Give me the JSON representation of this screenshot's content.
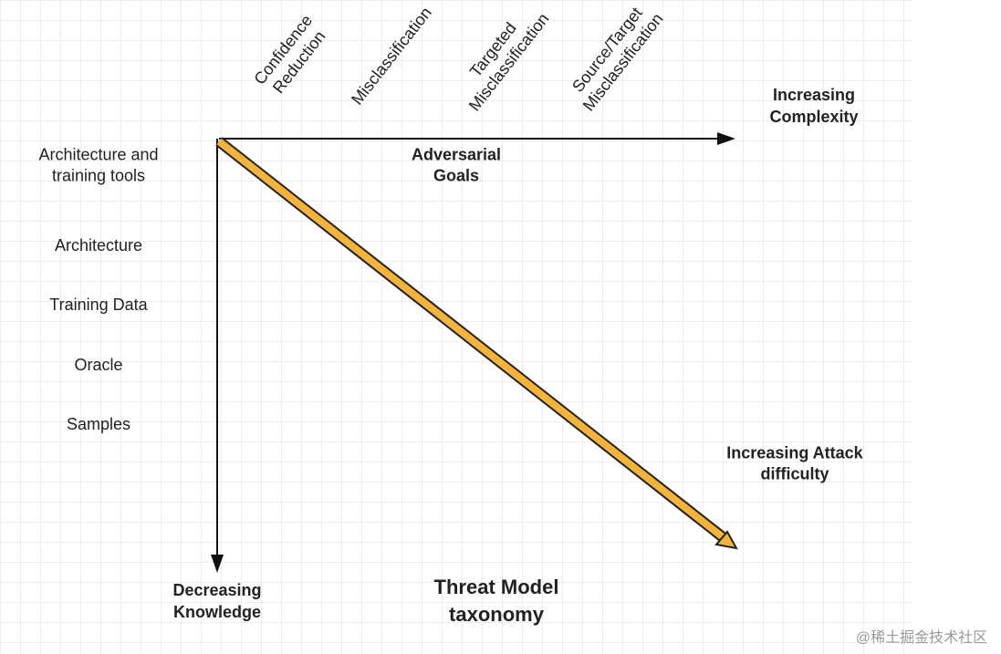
{
  "goals": [
    [
      "Confidence",
      "Reduction"
    ],
    [
      "Misclassification"
    ],
    [
      "Targeted",
      "Misclassification"
    ],
    [
      "Source/Target",
      "Misclassification"
    ]
  ],
  "x_axis": {
    "end_label": [
      "Increasing",
      "Complexity"
    ],
    "title": [
      "Adversarial",
      "Goals"
    ]
  },
  "knowledge": [
    [
      "Architecture and",
      "training tools"
    ],
    [
      "Architecture"
    ],
    [
      "Training Data"
    ],
    [
      "Oracle"
    ],
    [
      "Samples"
    ]
  ],
  "y_axis": {
    "end_label": [
      "Decreasing",
      "Knowledge"
    ]
  },
  "diagonal_label": [
    "Increasing Attack",
    "difficulty"
  ],
  "title": [
    "Threat Model",
    "taxonomy"
  ],
  "watermark": "@稀土掘金技术社区"
}
